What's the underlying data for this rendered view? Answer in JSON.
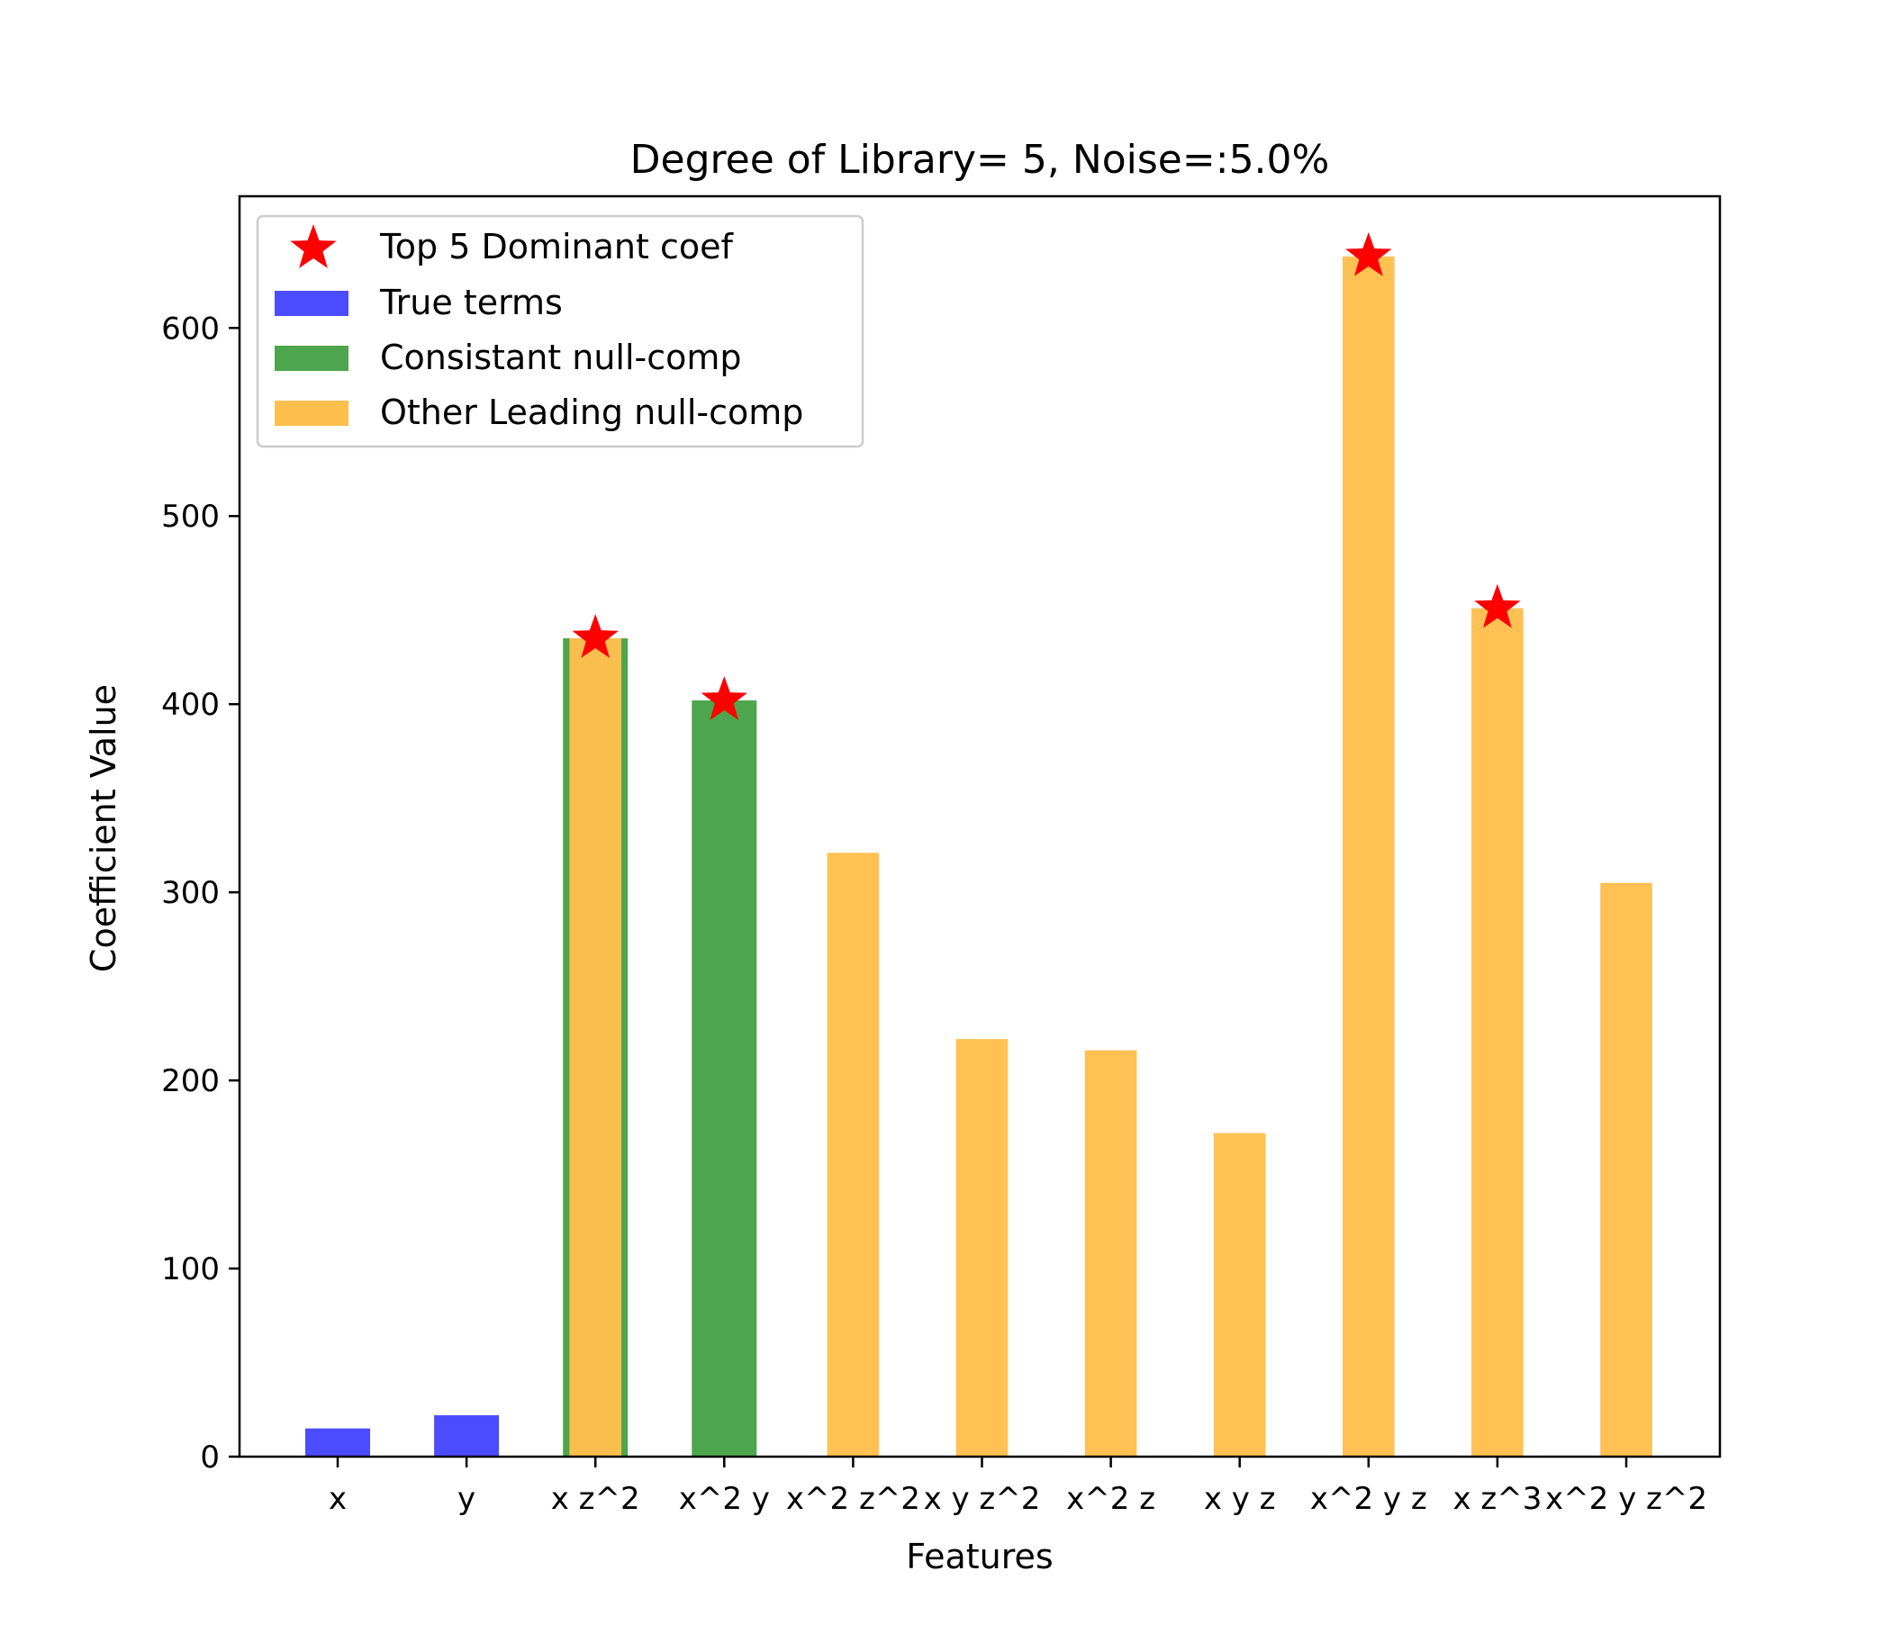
{
  "chart_data": {
    "type": "bar",
    "title": "Degree of Library= 5,   Noise=:5.0%",
    "xlabel": "Features",
    "ylabel": "Coefficient Value",
    "ylim": [
      0,
      670
    ],
    "yticks": [
      0,
      100,
      200,
      300,
      400,
      500,
      600
    ],
    "grid": false,
    "legend_position": "top-left",
    "categories": [
      "x",
      "y",
      "x z^2",
      "x^2 y",
      "x^2 z^2",
      "x y z^2",
      "x^2 z",
      "x y z",
      "x^2 y z",
      "x z^3",
      "x^2 y z^2"
    ],
    "series": [
      {
        "name": "True terms",
        "color": "#4b4bff",
        "values": [
          15,
          22,
          null,
          null,
          null,
          null,
          null,
          null,
          null,
          null,
          null
        ]
      },
      {
        "name": "Consistant null-comp",
        "color": "#4da64d",
        "values": [
          null,
          null,
          435,
          402,
          null,
          null,
          null,
          null,
          null,
          null,
          null
        ]
      },
      {
        "name": "Other Leading null-comp",
        "color": "#ffbf4d",
        "values": [
          null,
          null,
          435,
          null,
          321,
          222,
          216,
          172,
          638,
          451,
          305
        ]
      }
    ],
    "dominant": {
      "name": "Top 5 Dominant coef",
      "color": "#ff0000",
      "points": [
        {
          "category": "x z^2",
          "value": 435
        },
        {
          "category": "x^2 y",
          "value": 402
        },
        {
          "category": "x^2 y z",
          "value": 638
        },
        {
          "category": "x z^3",
          "value": 451
        }
      ]
    }
  }
}
